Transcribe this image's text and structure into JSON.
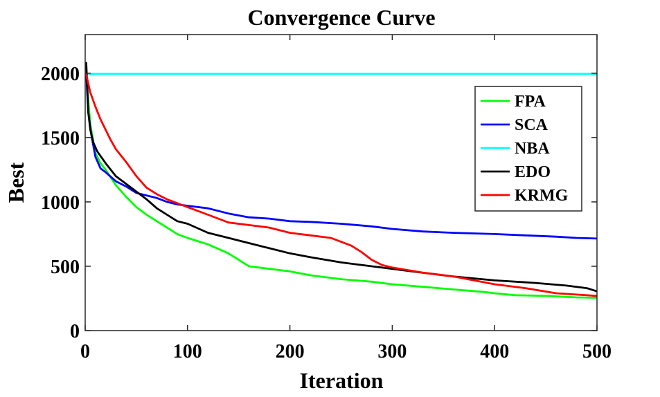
{
  "chart_data": {
    "type": "line",
    "title": "Convergence Curve",
    "xlabel": "Iteration",
    "ylabel": "Best",
    "xlim": [
      0,
      500
    ],
    "ylim": [
      0,
      2300
    ],
    "xticks": [
      0,
      100,
      200,
      300,
      400,
      500
    ],
    "yticks": [
      0,
      500,
      1000,
      1500,
      2000
    ],
    "xtick_labels": [
      "0",
      "100",
      "200",
      "300",
      "400",
      "500"
    ],
    "ytick_labels": [
      "0",
      "500",
      "1000",
      "1500",
      "2000"
    ],
    "grid": false,
    "legend_position": "top-right",
    "series": [
      {
        "name": "FPA",
        "color": "#00ff00",
        "x": [
          1,
          5,
          10,
          15,
          20,
          25,
          30,
          40,
          50,
          60,
          70,
          80,
          90,
          100,
          120,
          140,
          160,
          180,
          200,
          220,
          250,
          280,
          300,
          330,
          360,
          390,
          400,
          420,
          450,
          480,
          500
        ],
        "y": [
          1990,
          1600,
          1380,
          1300,
          1250,
          1190,
          1130,
          1040,
          960,
          900,
          850,
          800,
          750,
          720,
          670,
          600,
          500,
          480,
          460,
          430,
          400,
          380,
          360,
          340,
          320,
          300,
          290,
          275,
          270,
          258,
          255
        ]
      },
      {
        "name": "SCA",
        "color": "#0000ff",
        "x": [
          1,
          3,
          6,
          10,
          15,
          20,
          30,
          40,
          50,
          60,
          70,
          80,
          90,
          100,
          120,
          140,
          160,
          180,
          200,
          220,
          250,
          280,
          300,
          330,
          360,
          400,
          430,
          460,
          480,
          500
        ],
        "y": [
          1990,
          1700,
          1520,
          1350,
          1260,
          1230,
          1160,
          1120,
          1070,
          1050,
          1030,
          1000,
          980,
          970,
          950,
          910,
          880,
          870,
          850,
          845,
          830,
          810,
          790,
          770,
          760,
          750,
          740,
          730,
          720,
          715
        ]
      },
      {
        "name": "NBA",
        "color": "#00ffff",
        "x": [
          0,
          500
        ],
        "y": [
          1995,
          1995
        ]
      },
      {
        "name": "EDO",
        "color": "#000000",
        "x": [
          1,
          2,
          3,
          5,
          8,
          12,
          20,
          30,
          40,
          50,
          60,
          70,
          80,
          90,
          100,
          120,
          140,
          160,
          180,
          200,
          220,
          250,
          280,
          300,
          330,
          360,
          400,
          440,
          470,
          490,
          500
        ],
        "y": [
          2080,
          1900,
          1700,
          1560,
          1460,
          1390,
          1300,
          1200,
          1140,
          1080,
          1020,
          950,
          900,
          850,
          830,
          760,
          720,
          680,
          640,
          600,
          570,
          530,
          500,
          480,
          450,
          420,
          390,
          370,
          350,
          330,
          305
        ]
      },
      {
        "name": "KRMG",
        "color": "#ff0000",
        "x": [
          1,
          5,
          10,
          15,
          20,
          25,
          30,
          40,
          50,
          60,
          70,
          80,
          90,
          100,
          120,
          140,
          160,
          180,
          200,
          220,
          240,
          250,
          260,
          270,
          280,
          290,
          300,
          330,
          360,
          400,
          430,
          460,
          480,
          500
        ],
        "y": [
          1990,
          1850,
          1740,
          1640,
          1560,
          1480,
          1410,
          1310,
          1200,
          1110,
          1060,
          1020,
          990,
          960,
          900,
          840,
          820,
          800,
          760,
          740,
          720,
          690,
          660,
          610,
          550,
          510,
          490,
          450,
          420,
          360,
          330,
          290,
          280,
          270
        ]
      }
    ]
  }
}
